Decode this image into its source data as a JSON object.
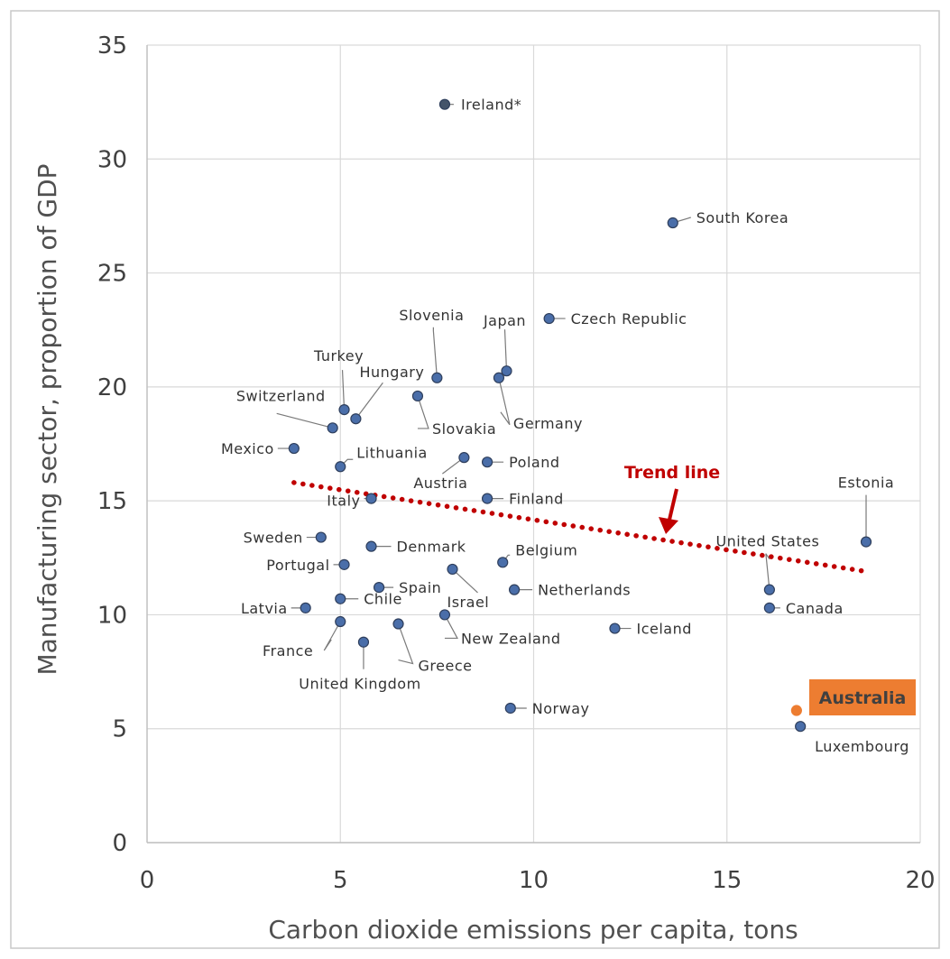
{
  "chart_data": {
    "type": "scatter",
    "xlabel": "Carbon dioxide emissions per capita, tons",
    "ylabel": "Manufacturing sector, proportion of GDP",
    "xlim": [
      0,
      20
    ],
    "ylim": [
      0,
      35
    ],
    "x_ticks": [
      0,
      5,
      10,
      15,
      20
    ],
    "y_ticks": [
      0,
      5,
      10,
      15,
      20,
      25,
      30,
      35
    ],
    "grid": true,
    "colors": {
      "point": "#4a6ea9",
      "point_edge": "#2f3f5c",
      "ireland": "#44546a",
      "highlight": "#ed7d31",
      "trend": "#c00000"
    },
    "points": [
      {
        "label": "Ireland*",
        "x": 7.7,
        "y": 32.4
      },
      {
        "label": "South Korea",
        "x": 13.6,
        "y": 27.2
      },
      {
        "label": "Czech Republic",
        "x": 10.4,
        "y": 23.0
      },
      {
        "label": "Slovenia",
        "x": 7.5,
        "y": 20.4
      },
      {
        "label": "Japan",
        "x": 9.3,
        "y": 20.7
      },
      {
        "label": "Germany",
        "x": 9.1,
        "y": 20.4
      },
      {
        "label": "Slovakia",
        "x": 7.0,
        "y": 19.6
      },
      {
        "label": "Turkey",
        "x": 5.1,
        "y": 19.0
      },
      {
        "label": "Hungary",
        "x": 5.4,
        "y": 18.6
      },
      {
        "label": "Switzerland",
        "x": 4.8,
        "y": 18.2
      },
      {
        "label": "Mexico",
        "x": 3.8,
        "y": 17.3
      },
      {
        "label": "Lithuania",
        "x": 5.0,
        "y": 16.5
      },
      {
        "label": "Austria",
        "x": 8.2,
        "y": 16.9
      },
      {
        "label": "Poland",
        "x": 8.8,
        "y": 16.7
      },
      {
        "label": "Italy",
        "x": 5.8,
        "y": 15.1
      },
      {
        "label": "Finland",
        "x": 8.8,
        "y": 15.1
      },
      {
        "label": "Estonia",
        "x": 18.6,
        "y": 13.2
      },
      {
        "label": "Sweden",
        "x": 4.5,
        "y": 13.4
      },
      {
        "label": "Denmark",
        "x": 5.8,
        "y": 13.0
      },
      {
        "label": "Portugal",
        "x": 5.1,
        "y": 12.2
      },
      {
        "label": "Belgium",
        "x": 9.2,
        "y": 12.3
      },
      {
        "label": "Israel",
        "x": 7.9,
        "y": 12.0
      },
      {
        "label": "Spain",
        "x": 6.0,
        "y": 11.2
      },
      {
        "label": "Netherlands",
        "x": 9.5,
        "y": 11.1
      },
      {
        "label": "United States",
        "x": 16.1,
        "y": 11.1
      },
      {
        "label": "Chile",
        "x": 5.0,
        "y": 10.7
      },
      {
        "label": "Latvia",
        "x": 4.1,
        "y": 10.3
      },
      {
        "label": "Canada",
        "x": 16.1,
        "y": 10.3
      },
      {
        "label": "New Zealand",
        "x": 7.7,
        "y": 10.0
      },
      {
        "label": "France",
        "x": 5.0,
        "y": 9.7
      },
      {
        "label": "Greece",
        "x": 6.5,
        "y": 9.6
      },
      {
        "label": "Iceland",
        "x": 12.1,
        "y": 9.4
      },
      {
        "label": "United Kingdom",
        "x": 5.6,
        "y": 8.8
      },
      {
        "label": "Norway",
        "x": 9.4,
        "y": 5.9
      },
      {
        "label": "Luxembourg",
        "x": 16.9,
        "y": 5.1
      },
      {
        "label": "Australia",
        "x": 16.8,
        "y": 5.8
      }
    ],
    "trend_line": {
      "label": "Trend line",
      "x": [
        3.8,
        18.6
      ],
      "y": [
        15.8,
        11.9
      ]
    },
    "highlight": "Australia"
  }
}
